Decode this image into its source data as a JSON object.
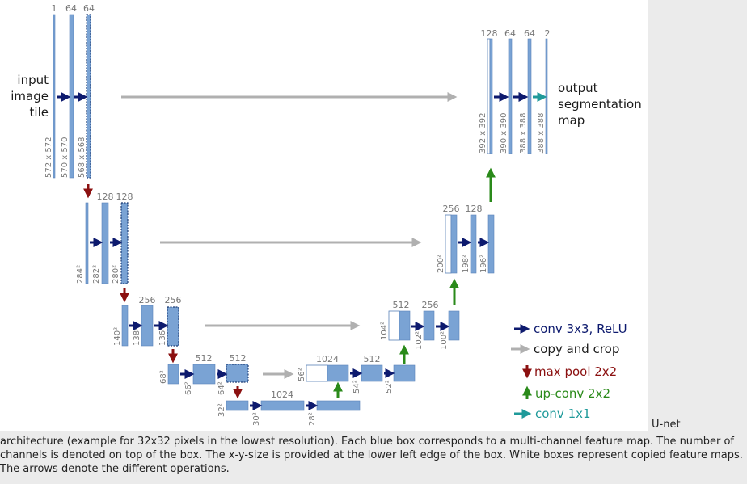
{
  "diagram": {
    "input_label": [
      "input",
      "image",
      "tile"
    ],
    "output_label": [
      "output",
      "segmentation",
      "map"
    ],
    "colors": {
      "feature_box": "#7aa3d4",
      "copied_box": "#ffffff",
      "conv": "#0d1a6e",
      "copy": "#b0b0b0",
      "pool": "#8b1010",
      "upconv": "#2a8a1a",
      "conv1x1": "#1f9a9a"
    },
    "legend": [
      {
        "label": "conv 3x3, ReLU",
        "color": "#0d1a6e",
        "kind": "right"
      },
      {
        "label": "copy and crop",
        "color": "#b0b0b0",
        "kind": "right"
      },
      {
        "label": "max pool 2x2",
        "color": "#8b1010",
        "kind": "down"
      },
      {
        "label": "up-conv 2x2",
        "color": "#2a8a1a",
        "kind": "up"
      },
      {
        "label": "conv 1x1",
        "color": "#1f9a9a",
        "kind": "right"
      }
    ],
    "channel_labels": {
      "l1": [
        "1",
        "64",
        "64"
      ],
      "l2": [
        "128",
        "128"
      ],
      "l3": [
        "256",
        "256"
      ],
      "l4": [
        "512",
        "512"
      ],
      "l5": [
        "1024"
      ],
      "r4": [
        "1024",
        "512"
      ],
      "r3": [
        "512",
        "256"
      ],
      "r2": [
        "256",
        "128"
      ],
      "r1": [
        "128",
        "64",
        "64",
        "2"
      ]
    },
    "size_labels": {
      "l1": [
        "572 x 572",
        "570 x 570",
        "568 x 568"
      ],
      "l2": [
        "284²",
        "282²",
        "280²"
      ],
      "l3": [
        "140²",
        "138²",
        "136²"
      ],
      "l4": [
        "68²",
        "66²",
        "64²"
      ],
      "l5": [
        "32²",
        "30²",
        "28²"
      ],
      "r4": [
        "56²",
        "54²",
        "52²"
      ],
      "r3": [
        "104²",
        "102²",
        "100²"
      ],
      "r2": [
        "200²",
        "198²",
        "196²"
      ],
      "r1": [
        "392 x 392",
        "390 x 390",
        "388 x 388",
        "388 x 388"
      ]
    }
  },
  "caption": {
    "head": "U-net",
    "body": "architecture (example for 32x32 pixels in the lowest resolution). Each blue box corresponds to a multi-channel feature map. The number of channels is denoted on top of the box. The x-y-size is provided at the lower left edge of the box. White boxes represent copied feature maps. The arrows denote the different operations."
  }
}
